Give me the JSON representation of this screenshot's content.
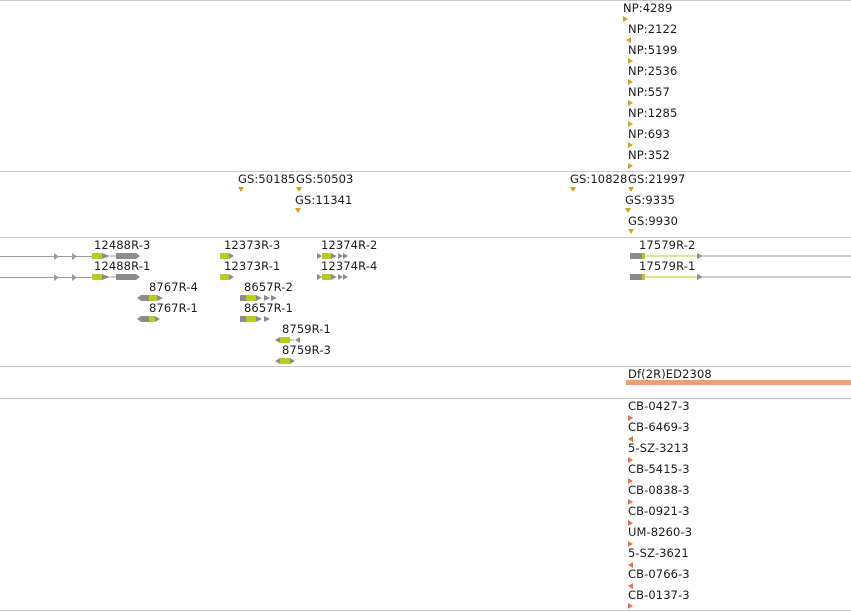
{
  "tracks": {
    "np": {
      "labels": [
        "NP:4289",
        "NP:2122",
        "NP:5199",
        "NP:2536",
        "NP:557",
        "NP:1285",
        "NP:693",
        "NP:352"
      ]
    },
    "gs": {
      "labels": [
        "GS:50185",
        "GS:50503",
        "GS:11341",
        "GS:10828",
        "GS:21997",
        "GS:9335",
        "GS:9930"
      ]
    },
    "transcripts": {
      "labels": [
        "12488R-3",
        "12488R-1",
        "8767R-4",
        "8767R-1",
        "12373R-3",
        "12373R-1",
        "8657R-2",
        "8657R-1",
        "8759R-1",
        "8759R-3",
        "12374R-2",
        "12374R-4",
        "17579R-2",
        "17579R-1"
      ]
    },
    "deficiency": {
      "label": "Df(2R)ED2308",
      "color": "#f0a070"
    },
    "insertions": {
      "labels": [
        "CB-0427-3",
        "CB-6469-3",
        "5-SZ-3213",
        "CB-5415-3",
        "CB-0838-3",
        "CB-0921-3",
        "UM-8260-3",
        "5-SZ-3621",
        "CB-0766-3",
        "CB-0137-3"
      ]
    }
  },
  "colors": {
    "feature_marker": "#d9a021",
    "exon_coding": "#b9cc1e",
    "exon_noncoding": "#8c8c8c",
    "insertion_marker": "#e8734a",
    "divider": "#c8c8c8"
  }
}
